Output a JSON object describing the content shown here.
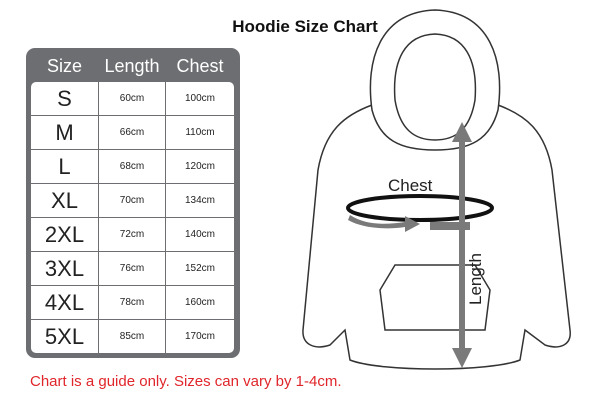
{
  "title": "Hoodie Size Chart",
  "table": {
    "headers": [
      "Size",
      "Length",
      "Chest"
    ],
    "rows": [
      [
        "S",
        "60cm",
        "100cm"
      ],
      [
        "M",
        "66cm",
        "110cm"
      ],
      [
        "L",
        "68cm",
        "120cm"
      ],
      [
        "XL",
        "70cm",
        "134cm"
      ],
      [
        "2XL",
        "72cm",
        "140cm"
      ],
      [
        "3XL",
        "76cm",
        "152cm"
      ],
      [
        "4XL",
        "78cm",
        "160cm"
      ],
      [
        "5XL",
        "85cm",
        "170cm"
      ]
    ]
  },
  "diagram": {
    "chest_label": "Chest",
    "length_label": "Length"
  },
  "note": "Chart is a guide only. Sizes can vary by 1-4cm.",
  "colors": {
    "panel": "#6d6e71",
    "note": "#e0262b",
    "arrow": "#7a7a7a"
  }
}
